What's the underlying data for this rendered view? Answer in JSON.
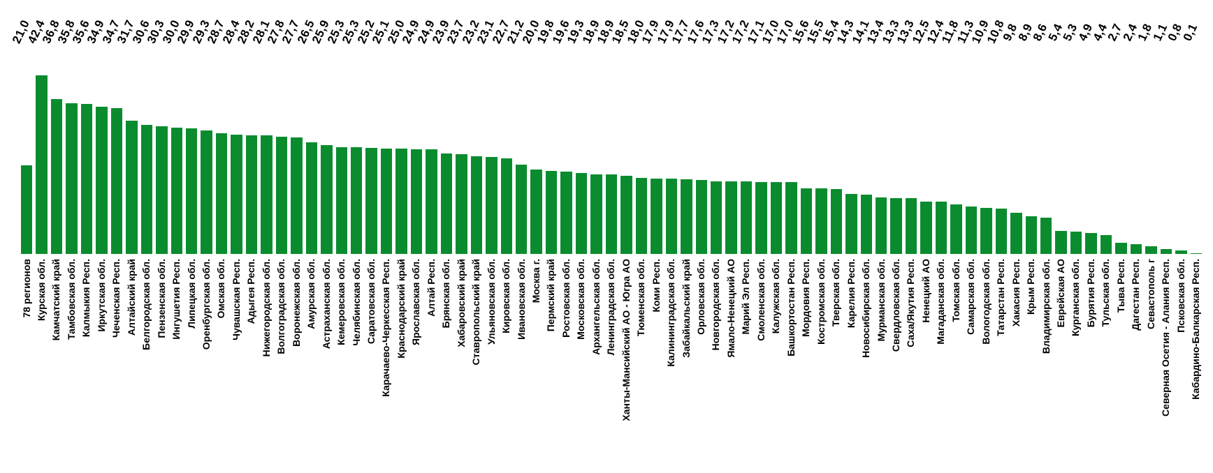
{
  "chart_data": {
    "type": "bar",
    "title": "",
    "xlabel": "",
    "ylabel": "",
    "ylim": [
      0,
      42.4
    ],
    "grid": false,
    "legend": "none",
    "bar_color": "#0a8c2e",
    "value_label_rotation_deg": -65,
    "category_label_rotation_deg": 90,
    "categories": [
      "78 регионов",
      "Курская обл.",
      "Камчатский край",
      "Тамбовская обл.",
      "Калмыкия Респ.",
      "Иркутская обл.",
      "Чеченская Респ.",
      "Алтайский край",
      "Белгородская обл.",
      "Пензенская обл.",
      "Ингушетия Респ.",
      "Липецкая обл.",
      "Оренбургская обл.",
      "Омская обл.",
      "Чувашская Респ.",
      "Адыгея Респ.",
      "Нижегородская обл.",
      "Волгоградская обл.",
      "Воронежская обл.",
      "Амурская обл.",
      "Астраханская обл.",
      "Кемеровская обл.",
      "Челябинская обл.",
      "Саратовская обл.",
      "Карачаево-Черкесская Респ.",
      "Краснодарский край",
      "Ярославская обл.",
      "Алтай Респ.",
      "Брянская обл.",
      "Хабаровский край",
      "Ставропольский край",
      "Ульяновская обл.",
      "Кировская обл.",
      "Ивановская обл.",
      "Москва г.",
      "Пермский край",
      "Ростовская обл.",
      "Московская обл.",
      "Архангельская обл.",
      "Ленинградская обл.",
      "Ханты-Мансийский АО - Югра АО",
      "Тюменская обл.",
      "Коми Респ.",
      "Калининградская обл.",
      "Забайкальский край",
      "Орловская обл.",
      "Новгородская обл.",
      "Ямало-Ненецкий АО",
      "Марий Эл Респ.",
      "Смоленская обл.",
      "Калужская обл.",
      "Башкортостан Респ.",
      "Мордовия Респ.",
      "Костромская обл.",
      "Тверская обл.",
      "Карелия Респ.",
      "Новосибирская обл.",
      "Мурманская обл.",
      "Свердловская обл.",
      "Саха/Якутия Респ.",
      "Ненецкий АО",
      "Магаданская обл.",
      "Томская обл.",
      "Самарская обл.",
      "Вологодская обл.",
      "Татарстан Респ.",
      "Хакасия Респ.",
      "Крым Респ.",
      "Владимирская обл.",
      "Еврейская АО",
      "Курганская обл.",
      "Бурятия Респ.",
      "Тульская обл.",
      "Тыва Респ.",
      "Дагестан Респ.",
      "Севастополь г",
      "Северная Осетия - Алания Респ.",
      "Псковская обл.",
      "Кабардино-Балкарская Респ."
    ],
    "values": [
      21.0,
      42.4,
      36.8,
      35.8,
      35.6,
      34.9,
      34.7,
      31.7,
      30.6,
      30.3,
      30.0,
      29.9,
      29.3,
      28.7,
      28.4,
      28.2,
      28.1,
      27.8,
      27.7,
      26.5,
      25.9,
      25.3,
      25.3,
      25.2,
      25.1,
      25.0,
      24.9,
      24.9,
      23.9,
      23.7,
      23.2,
      23.1,
      22.7,
      21.2,
      20.0,
      19.8,
      19.6,
      19.3,
      18.9,
      18.9,
      18.5,
      18.0,
      17.9,
      17.9,
      17.7,
      17.6,
      17.3,
      17.2,
      17.2,
      17.1,
      17.0,
      17.0,
      15.6,
      15.5,
      15.4,
      14.3,
      14.1,
      13.4,
      13.3,
      13.3,
      12.5,
      12.4,
      11.8,
      11.3,
      10.9,
      10.8,
      9.8,
      8.9,
      8.6,
      5.4,
      5.3,
      4.9,
      4.4,
      2.7,
      2.4,
      1.8,
      1.1,
      0.8,
      0.1
    ],
    "value_labels": [
      "21,0",
      "42,4",
      "36,8",
      "35,8",
      "35,6",
      "34,9",
      "34,7",
      "31,7",
      "30,6",
      "30,3",
      "30,0",
      "29,9",
      "29,3",
      "28,7",
      "28,4",
      "28,2",
      "28,1",
      "27,8",
      "27,7",
      "26,5",
      "25,9",
      "25,3",
      "25,3",
      "25,2",
      "25,1",
      "25,0",
      "24,9",
      "24,9",
      "23,9",
      "23,7",
      "23,2",
      "23,1",
      "22,7",
      "21,2",
      "20,0",
      "19,8",
      "19,6",
      "19,3",
      "18,9",
      "18,9",
      "18,5",
      "18,0",
      "17,9",
      "17,9",
      "17,7",
      "17,6",
      "17,3",
      "17,2",
      "17,2",
      "17,1",
      "17,0",
      "17,0",
      "15,6",
      "15,5",
      "15,4",
      "14,3",
      "14,1",
      "13,4",
      "13,3",
      "13,3",
      "12,5",
      "12,4",
      "11,8",
      "11,3",
      "10,9",
      "10,8",
      "9,8",
      "8,9",
      "8,6",
      "5,4",
      "5,3",
      "4,9",
      "4,4",
      "2,7",
      "2,4",
      "1,8",
      "1,1",
      "0,8",
      "0,1"
    ]
  }
}
